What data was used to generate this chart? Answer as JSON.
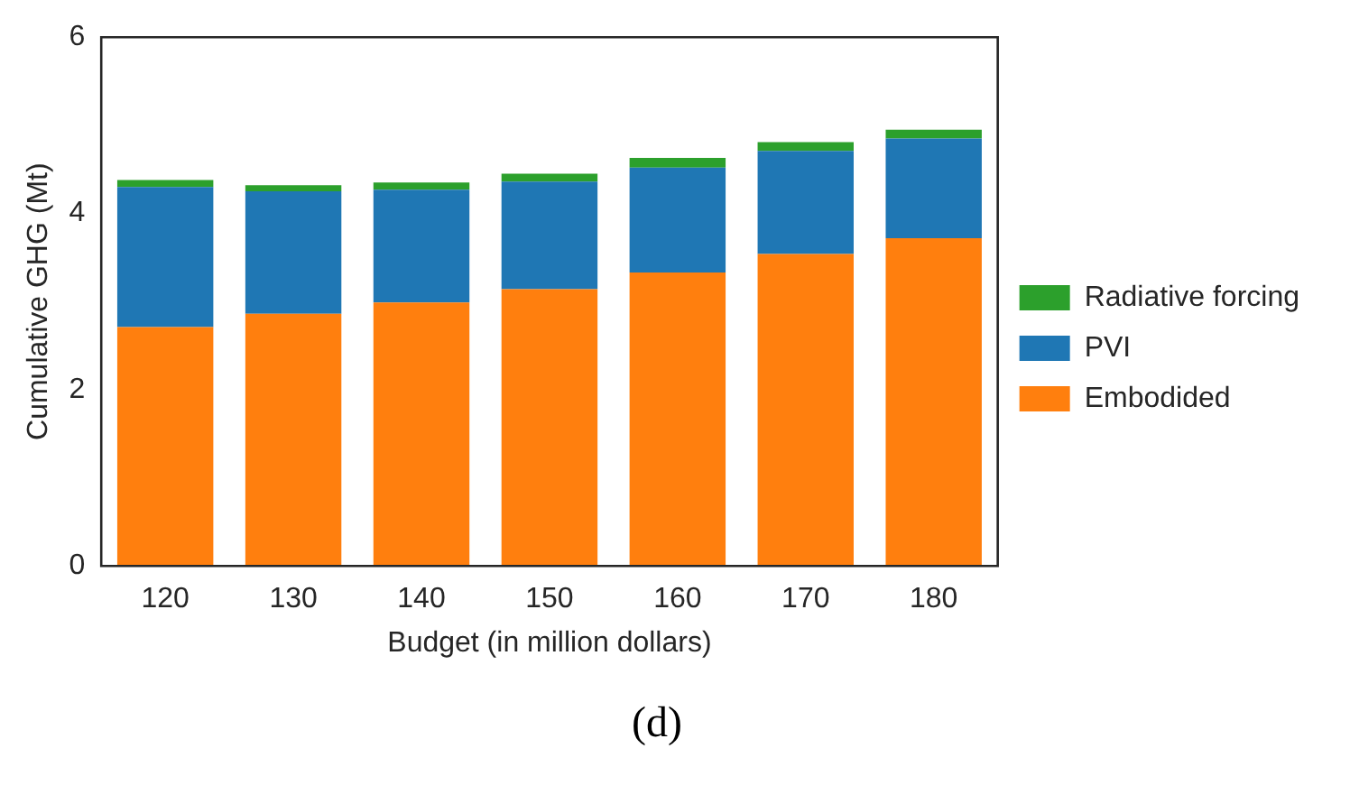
{
  "chart_data": {
    "type": "bar",
    "stacked": true,
    "xlabel": "Budget (in million dollars)",
    "ylabel": "Cumulative GHG (Mt)",
    "categories": [
      "120",
      "130",
      "140",
      "150",
      "160",
      "170",
      "180"
    ],
    "series": [
      {
        "name": "Embodided",
        "color": "#ff7f0e",
        "values": [
          2.71,
          2.86,
          2.99,
          3.14,
          3.33,
          3.54,
          3.72
        ]
      },
      {
        "name": "PVI",
        "color": "#1f77b4",
        "values": [
          1.59,
          1.39,
          1.28,
          1.22,
          1.19,
          1.17,
          1.13
        ]
      },
      {
        "name": "Radiative forcing",
        "color": "#2ca02c",
        "values": [
          0.08,
          0.07,
          0.08,
          0.09,
          0.11,
          0.1,
          0.1
        ]
      }
    ],
    "ylim": [
      0,
      6
    ],
    "yticks": [
      0,
      2,
      4,
      6
    ],
    "grid": false,
    "legend": "right",
    "annotations": [
      "(d)"
    ]
  }
}
